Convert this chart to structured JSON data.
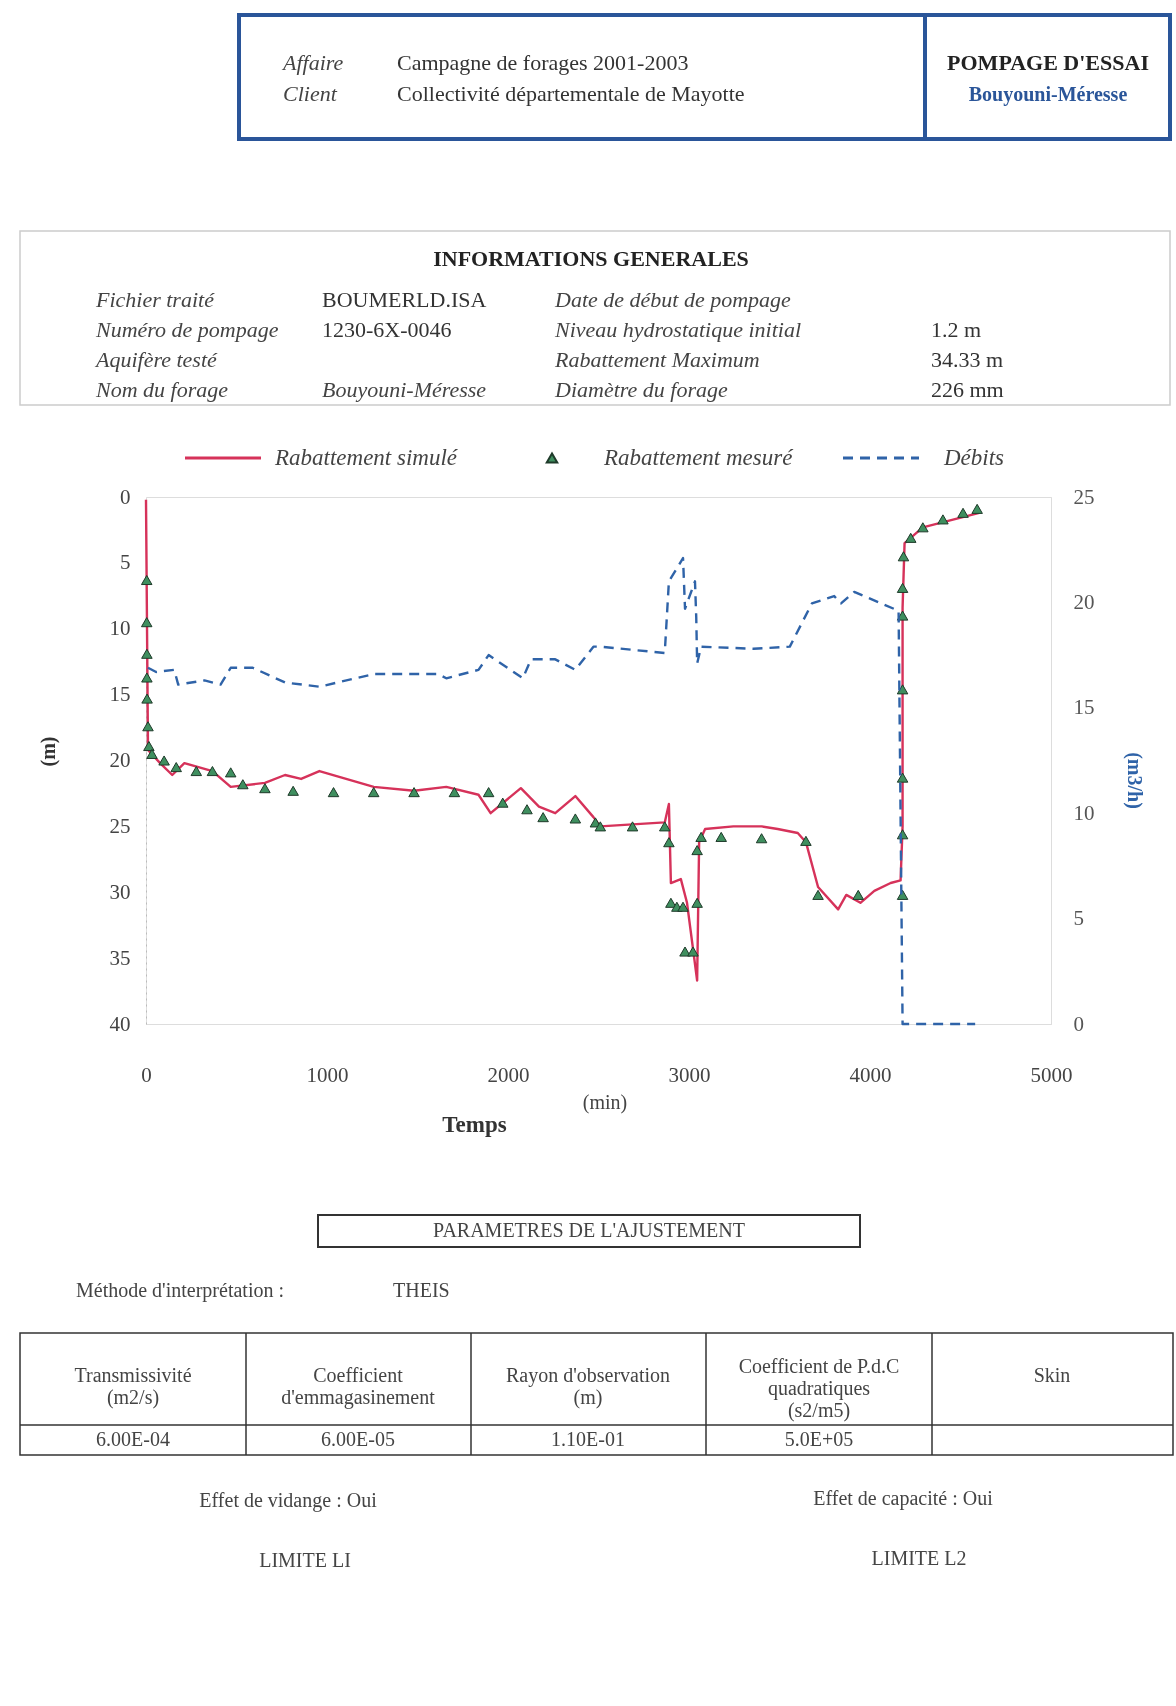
{
  "chart_data": {
    "type": "line",
    "xlabel": "Temps",
    "ylabel": "(m)",
    "y2label": "(m3/h)",
    "xlim": [
      0,
      5000
    ],
    "xticks": [
      0,
      1000,
      2000,
      3000,
      4000,
      5000
    ],
    "ylim": [
      40,
      0
    ],
    "yticks": [
      0,
      5,
      10,
      15,
      20,
      25,
      30,
      35,
      40
    ],
    "y2lim": [
      0,
      25
    ],
    "y2ticks": [
      0,
      5,
      10,
      15,
      20,
      25
    ],
    "grid": false,
    "legend": "top",
    "annotations": [
      "Affaire",
      "Campagne de forages 2001-2003",
      "Client",
      "Collectivité départementale de Mayotte",
      "POMPAGE D'ESSAI",
      "Bouyouni-Méresse",
      "INFORMATIONS GENERALES",
      "Fichier traité",
      "BOUMERLD.ISA",
      "Date de début de pompage",
      "Numéro de pompage",
      "1230-6X-0046",
      "Niveau hydrostatique initial",
      "1.2 m",
      "Aquifère testé",
      "Rabattement Maximum",
      "34.33 m",
      "Nom du forage",
      "Bouyouni-Méresse",
      "Diamètre du forage",
      "226 mm",
      "(min)",
      "PARAMETRES  DE  L'AJUSTEMENT",
      "Méthode d'interprétation :",
      "THEIS",
      "Transmissivité\n(m2/s)",
      "Coefficient\nd'emmagasinement",
      "Rayon d'observation\n(m)",
      "Coefficient de P.d.C\nquadratiques\n(s2/m5)",
      "Skin",
      "6.00E-04",
      "6.00E-05",
      "1.10E-01",
      "5.0E+05",
      "Effet de vidange : Oui",
      "Effet de capacité : Oui",
      "LIMITE  LI",
      "LIMITE  L2"
    ],
    "series": [
      {
        "name": "Rabattement simulé",
        "color": "#d6325a",
        "line_style": "solid",
        "marker": "none",
        "x": [
          0,
          11,
          78,
          145,
          212,
          367,
          468,
          657,
          768,
          857,
          958,
          1258,
          1481,
          1659,
          1837,
          1904,
          2071,
          2171,
          2261,
          2372,
          2472,
          2510,
          2866,
          2889,
          2900,
          2955,
          2989,
          3045,
          3056,
          3089,
          3245,
          3401,
          3490,
          3601,
          3646,
          3713,
          3824,
          3869,
          3947,
          4024,
          4114,
          4169,
          4180,
          4180,
          4191,
          4292,
          4604
        ],
        "values": [
          0.2,
          19.2,
          20.2,
          21.1,
          20.2,
          20.8,
          22,
          21.7,
          21.1,
          21.4,
          20.8,
          22,
          22.3,
          22,
          22.6,
          24,
          22.1,
          23.5,
          24,
          22.7,
          24.3,
          25,
          24.7,
          23.3,
          29.3,
          29,
          30.8,
          36.7,
          26.2,
          25.2,
          25,
          25,
          25.2,
          25.5,
          26.2,
          29.6,
          31.3,
          30.2,
          30.8,
          29.9,
          29.3,
          29.1,
          25,
          8.4,
          3.5,
          2.3,
          1.2
        ]
      },
      {
        "name": "Rabattement mesuré",
        "type": "scatter",
        "color": "#3f8f5f",
        "marker": "triangle",
        "x": [
          4,
          4,
          5,
          5,
          6,
          11,
          16,
          33,
          100,
          167,
          278,
          367,
          468,
          535,
          657,
          813,
          1036,
          1258,
          1481,
          1704,
          1893,
          1971,
          2105,
          2194,
          2372,
          2483,
          2510,
          2688,
          2866,
          2889,
          2900,
          2933,
          2967,
          2978,
          3022,
          3045,
          3045,
          3067,
          3178,
          3401,
          3646,
          3713,
          3935,
          4180,
          4180,
          4180,
          4180,
          4180,
          4180,
          4185,
          4225,
          4292,
          4403,
          4514,
          4592
        ],
        "values": [
          6.3,
          9.5,
          11.9,
          13.7,
          15.3,
          17.4,
          18.9,
          19.5,
          20,
          20.5,
          20.8,
          20.8,
          20.9,
          21.8,
          22.1,
          22.3,
          22.4,
          22.4,
          22.4,
          22.4,
          22.4,
          23.2,
          23.7,
          24.3,
          24.4,
          24.7,
          25,
          25,
          25,
          26.2,
          30.8,
          31.1,
          31.1,
          34.5,
          34.5,
          30.8,
          26.8,
          25.8,
          25.8,
          25.9,
          26.1,
          30.2,
          30.2,
          30.2,
          25.6,
          21.3,
          14.6,
          9,
          6.9,
          4.5,
          3.1,
          2.3,
          1.7,
          1.2,
          0.9
        ]
      },
      {
        "name": "Débits",
        "axis": "y2",
        "color": "#2f63a8",
        "line_style": "dashed",
        "marker": "none",
        "x": [
          11,
          56,
          156,
          178,
          323,
          412,
          468,
          590,
          768,
          958,
          1258,
          1615,
          1659,
          1837,
          1893,
          2082,
          2127,
          2261,
          2372,
          2472,
          2510,
          2866,
          2889,
          2967,
          2978,
          3033,
          3040,
          3045,
          3067,
          3356,
          3557,
          3679,
          3802,
          3840,
          3913,
          4158,
          4180,
          4581
        ],
        "values": [
          16.9,
          16.7,
          16.8,
          16.1,
          16.3,
          16.1,
          16.9,
          16.9,
          16.2,
          16,
          16.6,
          16.6,
          16.4,
          16.8,
          17.5,
          16.4,
          17.3,
          17.3,
          16.8,
          17.9,
          17.9,
          17.6,
          21,
          22.1,
          19.7,
          21,
          19.3,
          17.1,
          17.9,
          17.8,
          17.9,
          19.95,
          20.3,
          19.95,
          20.5,
          19.6,
          0,
          0
        ]
      }
    ]
  }
}
